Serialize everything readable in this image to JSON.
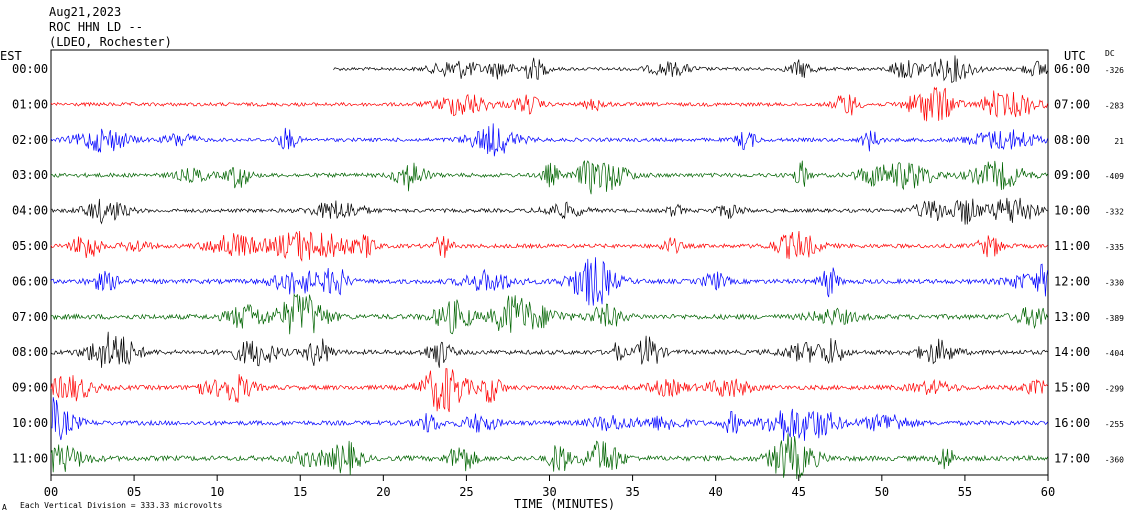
{
  "header": {
    "date": "Aug21,2023",
    "station": "ROC HHN LD --",
    "network": "(LDEO, Rochester)"
  },
  "left_axis_label": "EST",
  "right_axis_label": "UTC",
  "dc_label": "DC",
  "x_axis_label": "TIME (MINUTES)",
  "footer": "Each Vertical Division = 333.33 microvolts",
  "footer_mark": "A",
  "colors": {
    "trace_cycle": [
      "#000000",
      "#ff0000",
      "#0000ff",
      "#006400"
    ],
    "frame": "#000000",
    "background": "#ffffff"
  },
  "chart_data": {
    "type": "line",
    "title": "Aug21,2023 ROC HHN LD -- (LDEO, Rochester)",
    "xlabel": "TIME (MINUTES)",
    "xlim": [
      0,
      60
    ],
    "x_ticks": [
      "00",
      "05",
      "10",
      "15",
      "20",
      "25",
      "30",
      "35",
      "40",
      "45",
      "50",
      "55",
      "60"
    ],
    "grid": false,
    "rows": [
      {
        "est": "00:00",
        "utc": "06:00",
        "dc": "-326",
        "color": "#000000",
        "start_minute": 17,
        "amplitude": 0.7
      },
      {
        "est": "01:00",
        "utc": "07:00",
        "dc": "-283",
        "color": "#ff0000",
        "start_minute": 0,
        "amplitude": 0.8
      },
      {
        "est": "02:00",
        "utc": "08:00",
        "dc": "21",
        "color": "#0000ff",
        "start_minute": 0,
        "amplitude": 0.8
      },
      {
        "est": "03:00",
        "utc": "09:00",
        "dc": "-409",
        "color": "#006400",
        "start_minute": 0,
        "amplitude": 0.9
      },
      {
        "est": "04:00",
        "utc": "10:00",
        "dc": "-332",
        "color": "#000000",
        "start_minute": 0,
        "amplitude": 0.8
      },
      {
        "est": "05:00",
        "utc": "11:00",
        "dc": "-335",
        "color": "#ff0000",
        "start_minute": 0,
        "amplitude": 0.9
      },
      {
        "est": "06:00",
        "utc": "12:00",
        "dc": "-330",
        "color": "#0000ff",
        "start_minute": 0,
        "amplitude": 1.0
      },
      {
        "est": "07:00",
        "utc": "13:00",
        "dc": "-389",
        "color": "#006400",
        "start_minute": 0,
        "amplitude": 1.1
      },
      {
        "est": "08:00",
        "utc": "14:00",
        "dc": "-404",
        "color": "#000000",
        "start_minute": 0,
        "amplitude": 1.0
      },
      {
        "est": "09:00",
        "utc": "15:00",
        "dc": "-299",
        "color": "#ff0000",
        "start_minute": 0,
        "amplitude": 1.0
      },
      {
        "est": "10:00",
        "utc": "16:00",
        "dc": "-255",
        "color": "#0000ff",
        "start_minute": 0,
        "amplitude": 1.0
      },
      {
        "est": "11:00",
        "utc": "17:00",
        "dc": "-360",
        "color": "#006400",
        "start_minute": 0,
        "amplitude": 1.1
      }
    ]
  }
}
